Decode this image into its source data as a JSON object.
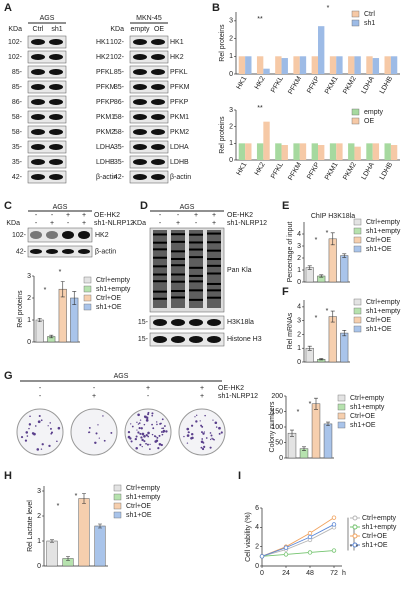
{
  "panel_labels": [
    "A",
    "B",
    "C",
    "D",
    "E",
    "F",
    "G",
    "H",
    "I"
  ],
  "blot_A": {
    "left": {
      "title": "AGS",
      "kda_label": "KDa",
      "lanes": [
        "Ctrl",
        "sh1"
      ],
      "kda": [
        "102-",
        "102-",
        "85-",
        "85-",
        "86-",
        "58-",
        "58-",
        "35-",
        "35-",
        "42-"
      ],
      "proteins": [
        "HK1",
        "HK2",
        "PFKL",
        "PFKM",
        "PFKP",
        "PKM1",
        "PKM2",
        "LDHA",
        "LDHB",
        "β-actin"
      ]
    },
    "right": {
      "title": "MKN-45",
      "kda_label": "KDa",
      "lanes": [
        "empty",
        "OE"
      ],
      "kda": [
        "102-",
        "102-",
        "85-",
        "85-",
        "86-",
        "58-",
        "58-",
        "35-",
        "35-",
        "42-"
      ],
      "proteins": [
        "HK1",
        "HK2",
        "PFKL",
        "PFKM",
        "PFKP",
        "PKM1",
        "PKM2",
        "LDHA",
        "LDHB",
        "β-actin"
      ]
    }
  },
  "blot_C": {
    "title": "AGS",
    "kda_label": "KDa",
    "rows": [
      "OE-HK2",
      "sh1-NLRP12"
    ],
    "signs": [
      [
        "-",
        "-",
        "+",
        "+"
      ],
      [
        "-",
        "+",
        "-",
        "+"
      ]
    ],
    "kda": [
      "102-",
      "42-"
    ],
    "proteins": [
      "HK2",
      "β-actin"
    ]
  },
  "blot_D": {
    "title": "AGS",
    "kda_label": "KDa",
    "rows": [
      "OE-HK2",
      "sh1-NLRP12"
    ],
    "signs": [
      [
        "-",
        "-",
        "+",
        "+"
      ],
      [
        "-",
        "+",
        "-",
        "+"
      ]
    ],
    "kda": [
      "15-",
      "15-"
    ],
    "proteins": [
      "Pan Kla",
      "H3K18la",
      "Histone H3"
    ]
  },
  "plates_G": {
    "title": "AGS",
    "rows": [
      "OE-HK2",
      "sh1-NLRP12"
    ],
    "signs": [
      [
        "-",
        "-",
        "+",
        "+"
      ],
      [
        "-",
        "+",
        "-",
        "+"
      ]
    ]
  },
  "chart_data": [
    {
      "type": "grouped_bar",
      "ylabel": "Rel  proteins",
      "categories": [
        "HK1",
        "HK2",
        "PFKL",
        "PFKM",
        "PFKP",
        "PKM1",
        "PKM2",
        "LDHA",
        "LDHB"
      ],
      "series": [
        {
          "name": "Ctrl",
          "color": "#f6c9a6",
          "values": [
            1,
            1,
            1,
            1,
            1,
            1,
            1,
            1,
            1
          ]
        },
        {
          "name": "sh1",
          "color": "#9dbbe6",
          "values": [
            1,
            0.3,
            0.9,
            1,
            2.7,
            1,
            1,
            0.9,
            1
          ]
        }
      ],
      "ylim": [
        0,
        3.5
      ],
      "yticks": [
        0,
        1,
        2,
        3
      ],
      "annotations": [
        "**",
        "*"
      ]
    },
    {
      "type": "grouped_bar",
      "ylabel": "Rel  proteins",
      "categories": [
        "HK1",
        "HK2",
        "PFKL",
        "PFKM",
        "PFKP",
        "PKM1",
        "PKM2",
        "LDHA",
        "LDHB"
      ],
      "series": [
        {
          "name": "empty",
          "color": "#a6d99f",
          "values": [
            1,
            1,
            1,
            1,
            1,
            1,
            1,
            1,
            1
          ]
        },
        {
          "name": "OE",
          "color": "#f6c9a6",
          "values": [
            1,
            2.3,
            0.9,
            1,
            0.9,
            1,
            0.8,
            1,
            0.9
          ]
        }
      ],
      "ylim": [
        0,
        3
      ],
      "yticks": [
        0,
        1,
        2,
        3
      ],
      "annotations": [
        "**"
      ]
    },
    {
      "type": "bar",
      "ylabel": "Rel  proteins",
      "categories": [
        "Ctrl+empty",
        "sh1+empty",
        "Ctrl+OE",
        "sh1+OE"
      ],
      "values": [
        1,
        0.25,
        2.4,
        2.0
      ],
      "errors": [
        0.08,
        0.06,
        0.35,
        0.3
      ],
      "colors": [
        "#e3e3e3",
        "#b6e2ae",
        "#f6cfae",
        "#a9c4ea"
      ],
      "ylim": [
        0,
        3
      ],
      "yticks": [
        0,
        1,
        2,
        3
      ],
      "annotations": [
        "*",
        "*"
      ]
    },
    {
      "type": "bar",
      "title": "ChIP H3K18la",
      "ylabel": "Percentage of input",
      "categories": [
        "Ctrl+empty",
        "sh1+empty",
        "Ctrl+OE",
        "sh1+OE"
      ],
      "values": [
        1.2,
        0.5,
        3.6,
        2.2
      ],
      "errors": [
        0.15,
        0.1,
        0.5,
        0.15
      ],
      "colors": [
        "#e3e3e3",
        "#b6e2ae",
        "#f6cfae",
        "#a9c4ea"
      ],
      "ylim": [
        0,
        5
      ],
      "yticks": [
        0,
        1,
        2,
        3,
        4
      ],
      "annotations": [
        "*",
        "*"
      ]
    },
    {
      "type": "bar",
      "ylabel": "Rel mRNAs",
      "categories": [
        "Ctrl+empty",
        "sh1+empty",
        "Ctrl+OE",
        "sh1+OE"
      ],
      "values": [
        1.0,
        0.2,
        3.3,
        2.1
      ],
      "errors": [
        0.15,
        0.05,
        0.4,
        0.2
      ],
      "colors": [
        "#e3e3e3",
        "#b6e2ae",
        "#f6cfae",
        "#a9c4ea"
      ],
      "ylim": [
        0,
        4.5
      ],
      "yticks": [
        0,
        1,
        2,
        3,
        4
      ],
      "annotations": [
        "*",
        "*"
      ]
    },
    {
      "type": "bar",
      "ylabel": "Colony numbers",
      "categories": [
        "Ctrl+empty",
        "sh1+empty",
        "Ctrl+OE",
        "sh1+OE"
      ],
      "values": [
        80,
        30,
        175,
        110
      ],
      "errors": [
        10,
        6,
        18,
        6
      ],
      "colors": [
        "#e3e3e3",
        "#b6e2ae",
        "#f6cfae",
        "#a9c4ea"
      ],
      "ylim": [
        0,
        200
      ],
      "yticks": [
        0,
        50,
        100,
        150,
        200
      ],
      "annotations": [
        "*",
        "*"
      ]
    },
    {
      "type": "bar",
      "ylabel": "Rel Lactate level",
      "categories": [
        "Ctrl+empty",
        "sh1+empty",
        "Ctrl+OE",
        "sh1+OE"
      ],
      "values": [
        1.0,
        0.3,
        2.7,
        1.6
      ],
      "errors": [
        0.05,
        0.08,
        0.2,
        0.08
      ],
      "colors": [
        "#e3e3e3",
        "#b6e2ae",
        "#f6cfae",
        "#a9c4ea"
      ],
      "ylim": [
        0,
        3.2
      ],
      "yticks": [
        0,
        1,
        2,
        3
      ],
      "annotations": [
        "*",
        "*"
      ]
    },
    {
      "type": "line",
      "ylabel": "Cell viability (%)",
      "xunit": "h",
      "x": [
        0,
        24,
        48,
        72
      ],
      "xlim": [
        0,
        80
      ],
      "xticks": [
        0,
        24,
        48,
        72
      ],
      "ylim": [
        0,
        6
      ],
      "yticks": [
        0,
        2,
        4,
        6
      ],
      "series": [
        {
          "name": "Ctrl+empty",
          "color": "#b5b5b5",
          "values": [
            1,
            1.7,
            2.7,
            4.0
          ]
        },
        {
          "name": "sh1+empty",
          "color": "#74c46f",
          "values": [
            1,
            1.2,
            1.4,
            1.6
          ]
        },
        {
          "name": "Ctrl+OE",
          "color": "#f0a25e",
          "values": [
            1,
            2.0,
            3.4,
            5.0
          ]
        },
        {
          "name": "sh1+OE",
          "color": "#5a86d6",
          "values": [
            1,
            1.9,
            3.0,
            4.3
          ]
        }
      ],
      "annotations": [
        "*",
        "*"
      ]
    }
  ]
}
